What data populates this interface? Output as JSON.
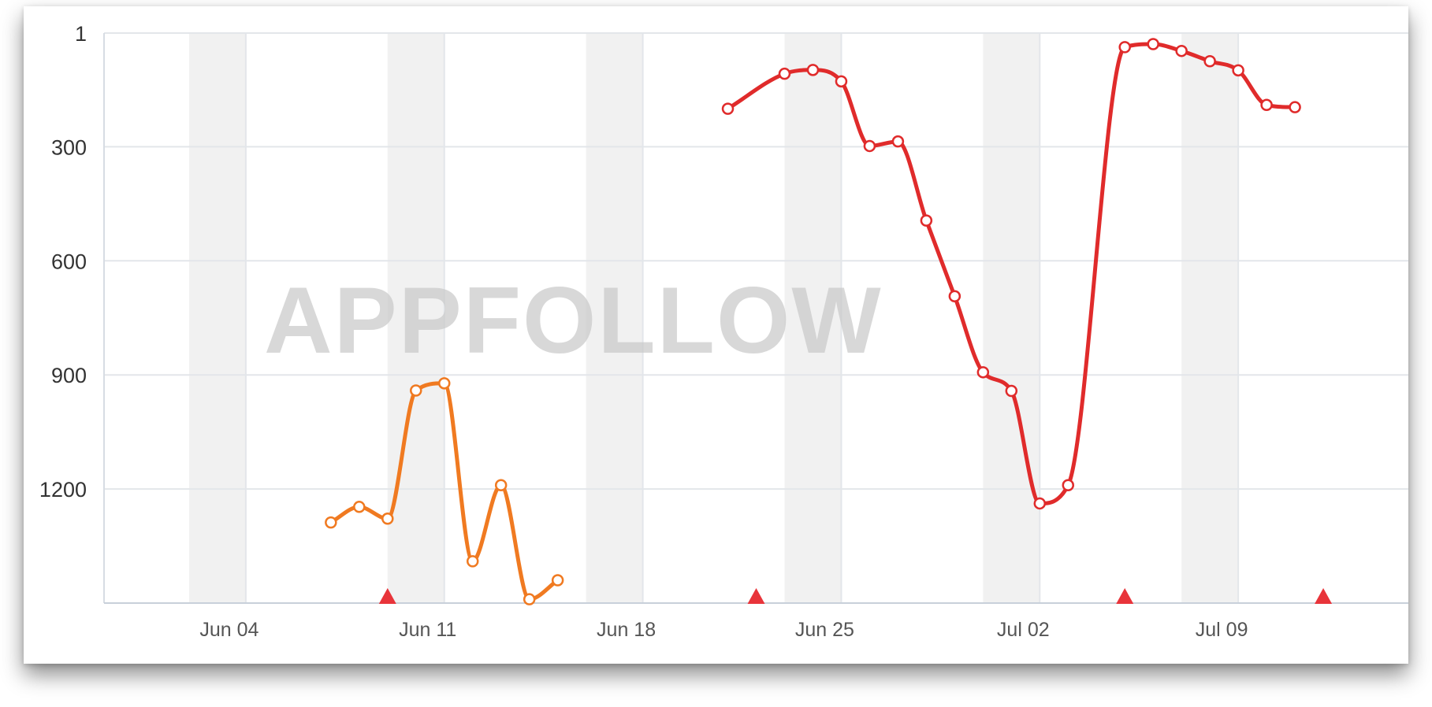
{
  "watermark": "APPFOLLOW",
  "chart_data": {
    "type": "line",
    "title": "",
    "xlabel": "",
    "ylabel": "",
    "y_inverted": true,
    "ylim": [
      1,
      1500
    ],
    "y_ticks": [
      "1",
      "300",
      "600",
      "900",
      "1200"
    ],
    "y_tick_values": [
      1,
      300,
      600,
      900,
      1200
    ],
    "x_ticks": [
      "Jun 04",
      "Jun 11",
      "Jun 18",
      "Jun 25",
      "Jul 02",
      "Jul 09"
    ],
    "x_tick_dates": [
      "2018-06-04",
      "2018-06-11",
      "2018-06-18",
      "2018-06-25",
      "2018-07-02",
      "2018-07-09"
    ],
    "xlim": [
      "2018-05-30",
      "2018-07-15"
    ],
    "weekend_bands": [
      [
        "2018-06-02",
        "2018-06-04"
      ],
      [
        "2018-06-09",
        "2018-06-11"
      ],
      [
        "2018-06-16",
        "2018-06-18"
      ],
      [
        "2018-06-23",
        "2018-06-25"
      ],
      [
        "2018-06-30",
        "2018-07-02"
      ],
      [
        "2018-07-07",
        "2018-07-09"
      ]
    ],
    "grid": true,
    "legend": "none",
    "series": [
      {
        "color": "#f07a21",
        "points": [
          {
            "x": "2018-06-07",
            "y": 1288
          },
          {
            "x": "2018-06-08",
            "y": 1247
          },
          {
            "x": "2018-06-09",
            "y": 1278
          },
          {
            "x": "2018-06-10",
            "y": 941
          },
          {
            "x": "2018-06-11",
            "y": 922
          },
          {
            "x": "2018-06-12",
            "y": 1390
          },
          {
            "x": "2018-06-13",
            "y": 1190
          },
          {
            "x": "2018-06-14",
            "y": 1490
          },
          {
            "x": "2018-06-15",
            "y": 1440
          }
        ]
      },
      {
        "color": "#e02b2b",
        "points": [
          {
            "x": "2018-06-21",
            "y": 200
          },
          {
            "x": "2018-06-23",
            "y": 108
          },
          {
            "x": "2018-06-24",
            "y": 98
          },
          {
            "x": "2018-06-25",
            "y": 128
          },
          {
            "x": "2018-06-26",
            "y": 298
          },
          {
            "x": "2018-06-27",
            "y": 286
          },
          {
            "x": "2018-06-28",
            "y": 494
          },
          {
            "x": "2018-06-29",
            "y": 693
          },
          {
            "x": "2018-06-30",
            "y": 893
          },
          {
            "x": "2018-07-01",
            "y": 942
          },
          {
            "x": "2018-07-02",
            "y": 1238
          },
          {
            "x": "2018-07-03",
            "y": 1190
          },
          {
            "x": "2018-07-05",
            "y": 38
          },
          {
            "x": "2018-07-06",
            "y": 30
          },
          {
            "x": "2018-07-07",
            "y": 48
          },
          {
            "x": "2018-07-08",
            "y": 75
          },
          {
            "x": "2018-07-09",
            "y": 99
          },
          {
            "x": "2018-07-10",
            "y": 190
          },
          {
            "x": "2018-07-11",
            "y": 196
          }
        ]
      }
    ],
    "markers": {
      "shape": "triangle",
      "color": "#e8343a",
      "dates": [
        "2018-06-09",
        "2018-06-22",
        "2018-07-05",
        "2018-07-12"
      ]
    }
  }
}
